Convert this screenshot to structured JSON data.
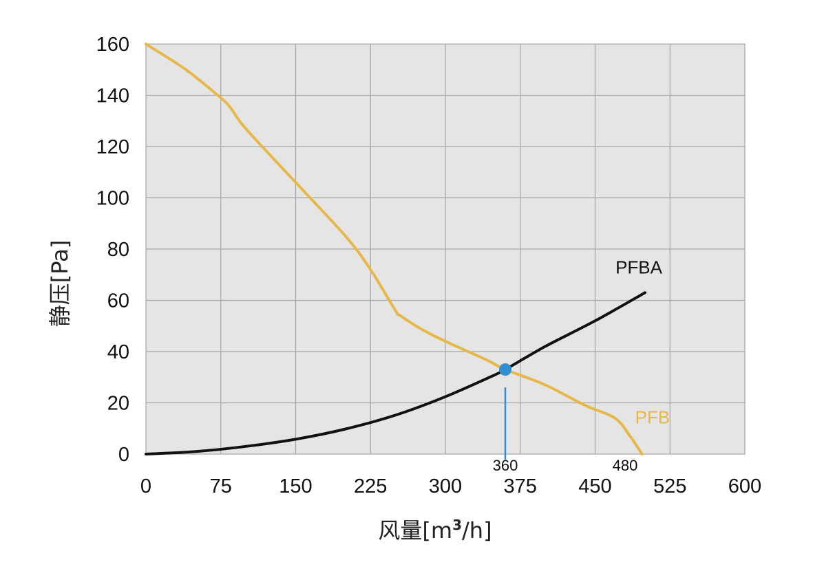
{
  "chart_data": {
    "type": "line",
    "xlabel_main": "风量[m",
    "xlabel_sup": "3",
    "xlabel_tail": "/h]",
    "ylabel": "静压[Pa]",
    "xlim": [
      0,
      600
    ],
    "ylim": [
      0,
      160
    ],
    "x_ticks": [
      "0",
      "75",
      "150",
      "225",
      "300",
      "375",
      "450",
      "525",
      "600"
    ],
    "y_ticks": [
      "0",
      "20",
      "40",
      "60",
      "80",
      "100",
      "120",
      "140",
      "160"
    ],
    "grid": true,
    "background": "#e5e5e5",
    "grid_color": "#a6a6a6",
    "series": [
      {
        "name": "PFBA",
        "color": "#111111",
        "x": [
          0,
          50,
          100,
          150,
          200,
          250,
          300,
          350,
          360,
          400,
          450,
          500
        ],
        "y": [
          0,
          1.0,
          3.0,
          5.8,
          9.8,
          15.2,
          22.4,
          31.0,
          33.0,
          42.0,
          52.0,
          63.0
        ]
      },
      {
        "name": "PFB",
        "color": "#e6b84a",
        "x": [
          0,
          40,
          75,
          85,
          100,
          150,
          200,
          225,
          250,
          255,
          275,
          300,
          340,
          360,
          400,
          440,
          470,
          485,
          497
        ],
        "y": [
          160,
          150,
          139,
          135,
          127,
          106,
          85,
          72,
          56,
          54,
          49,
          44,
          37,
          33,
          27,
          19,
          14,
          7,
          0
        ]
      }
    ],
    "operating_point": {
      "x": 360,
      "y": 33,
      "color": "#2f8fd0",
      "guide_top_y": 26,
      "label": "360"
    },
    "marker_480": {
      "x": 480,
      "label": "480"
    }
  }
}
